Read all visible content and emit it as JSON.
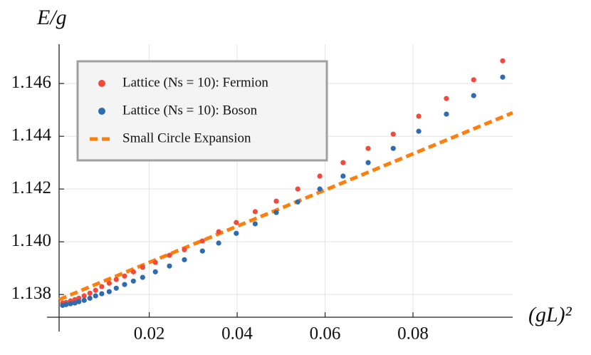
{
  "chart_data": {
    "type": "scatter",
    "y_label": "E/g",
    "x_label": "(gL)²",
    "xlim": [
      -0.0005,
      0.10267
    ],
    "ylim": [
      1.13714,
      1.14749
    ],
    "xticks": [
      0.02,
      0.04,
      0.06,
      0.08
    ],
    "yticks": [
      1.138,
      {
        "value": 1.14,
        "label": "1.140"
      },
      1.142,
      1.144,
      1.146
    ],
    "grid": true,
    "legend": "upper left",
    "x": [
      0.0003,
      0.0011,
      0.0021,
      0.0031,
      0.004,
      0.0052,
      0.0065,
      0.0078,
      0.0092,
      0.0109,
      0.0125,
      0.0144,
      0.0164,
      0.0185,
      0.0214,
      0.0246,
      0.028,
      0.0321,
      0.0358,
      0.0398,
      0.0441,
      0.0489,
      0.0538,
      0.0588,
      0.0641,
      0.0698,
      0.0755,
      0.0813,
      0.0876,
      0.0938,
      0.1004
    ],
    "series": [
      {
        "name": "Lattice (Ns = 10): Fermion",
        "color": "#f04a3c",
        "values": [
          1.13768,
          1.1377,
          1.13776,
          1.13781,
          1.13786,
          1.13795,
          1.13805,
          1.13816,
          1.1383,
          1.13843,
          1.13857,
          1.1387,
          1.13886,
          1.13903,
          1.13922,
          1.13949,
          1.1397,
          1.14003,
          1.14038,
          1.14073,
          1.14114,
          1.14154,
          1.142,
          1.14249,
          1.143,
          1.14354,
          1.14408,
          1.14476,
          1.14543,
          1.14614,
          1.14686
        ]
      },
      {
        "name": "Lattice (Ns = 10): Boson",
        "color": "#2e6bb0",
        "values": [
          1.13759,
          1.13762,
          1.13765,
          1.13768,
          1.13773,
          1.13778,
          1.13786,
          1.13795,
          1.13803,
          1.13811,
          1.13824,
          1.13838,
          1.13851,
          1.13865,
          1.13886,
          1.13908,
          1.13932,
          1.13965,
          1.13995,
          1.14032,
          1.14068,
          1.14111,
          1.14151,
          1.142,
          1.14249,
          1.143,
          1.14354,
          1.14419,
          1.14484,
          1.14554,
          1.14624
        ]
      }
    ],
    "lines": [
      {
        "name": "Small Circle Expansion",
        "color": "#ff7f0e",
        "x": [
          -0.0005,
          0.10267
        ],
        "values": [
          1.13781,
          1.14489
        ]
      }
    ]
  }
}
